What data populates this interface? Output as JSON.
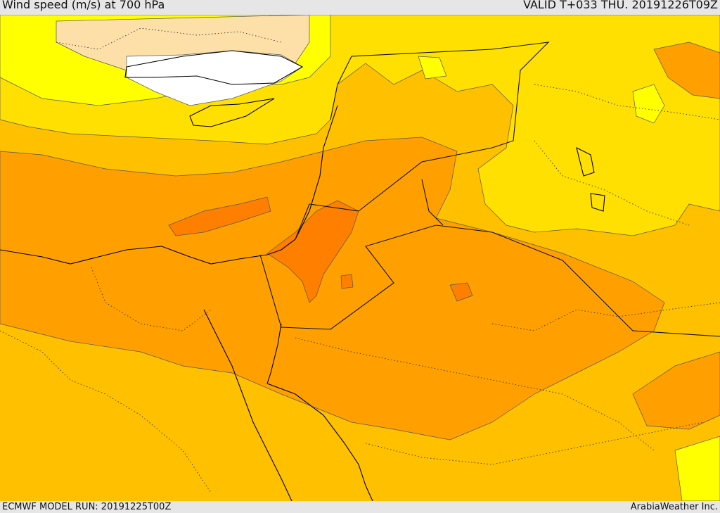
{
  "header": {
    "title": "Wind speed (m/s) at 700 hPa",
    "valid_time": "VALID T+033 THU. 20191226T09Z"
  },
  "footer": {
    "model_run": "ECMWF MODEL RUN: 20191225T00Z",
    "credit": "ArabiaWeather Inc."
  },
  "map": {
    "field": "wind-speed",
    "colors": {
      "calm": "#ffffff",
      "very_light": "#fde0a8",
      "light": "#ffff00",
      "moderate_low": "#ffe000",
      "moderate": "#ffc000",
      "moderate_high": "#ffa000",
      "strong": "#ff7f00"
    },
    "overlays": [
      "coastlines",
      "country-borders",
      "province-borders"
    ]
  }
}
